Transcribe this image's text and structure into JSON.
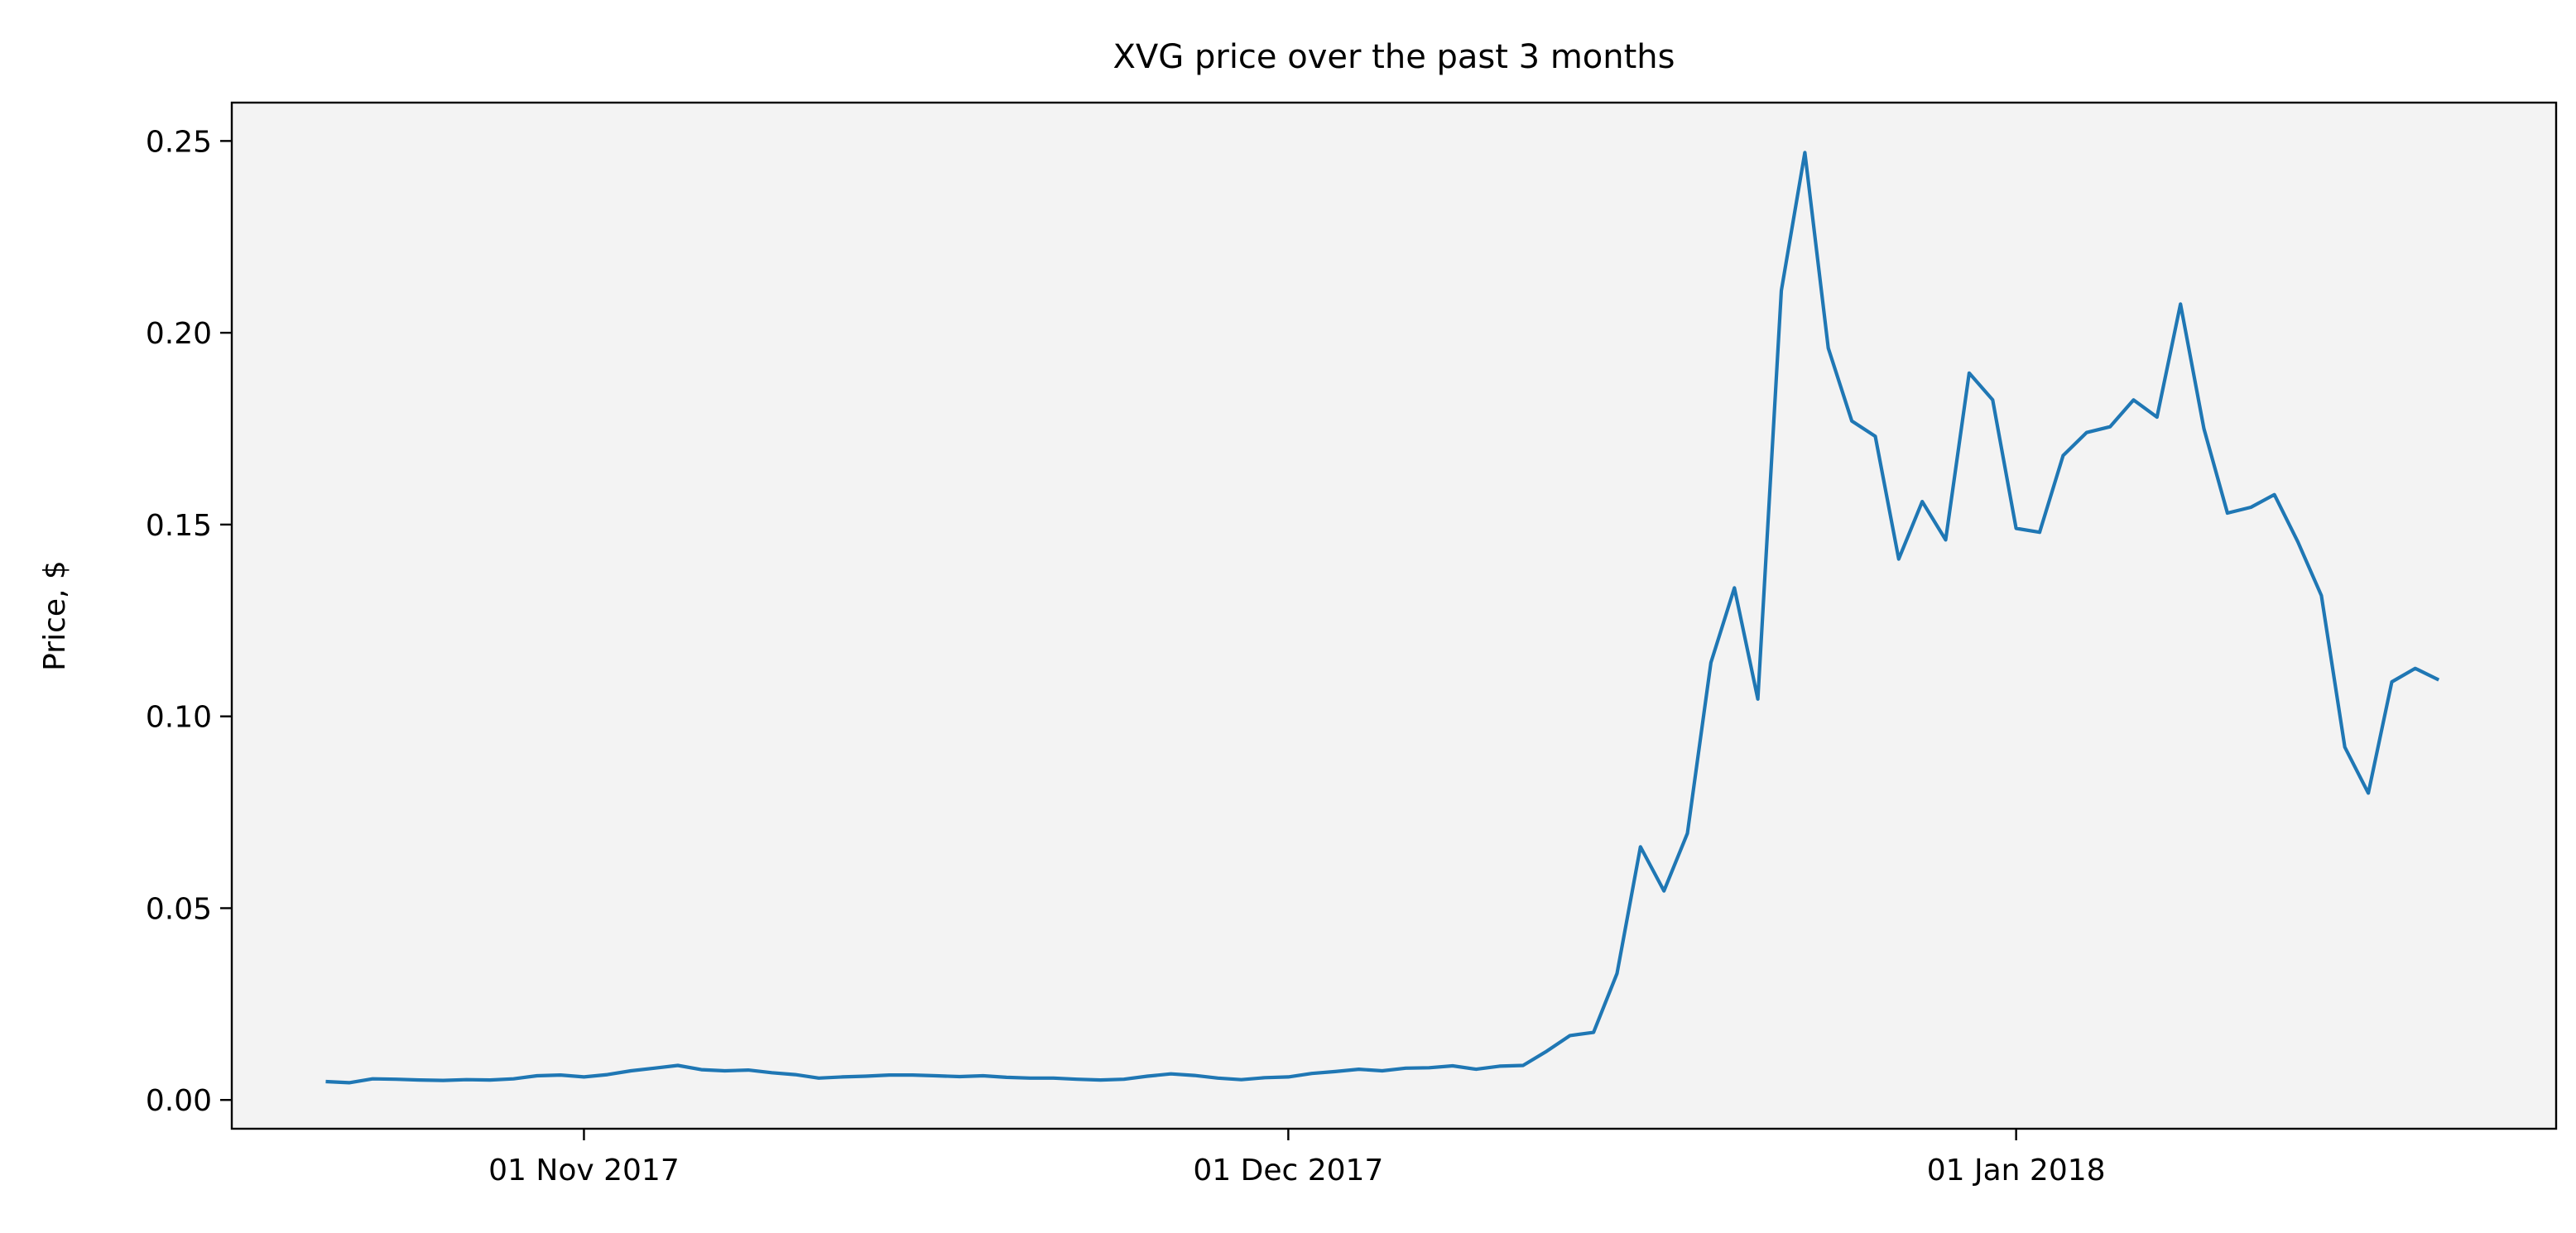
{
  "chart_data": {
    "type": "line",
    "title": "XVG price over the past 3 months",
    "xlabel": "",
    "ylabel": "Price, $",
    "x_tick_labels": [
      {
        "date": "2017-11-01",
        "label": "01 Nov 2017"
      },
      {
        "date": "2017-12-01",
        "label": "01 Dec 2017"
      },
      {
        "date": "2018-01-01",
        "label": "01 Jan 2018"
      }
    ],
    "y_ticks": [
      0.0,
      0.05,
      0.1,
      0.15,
      0.2,
      0.25
    ],
    "y_tick_labels": [
      "0.00",
      "0.05",
      "0.10",
      "0.15",
      "0.20",
      "0.25"
    ],
    "xlim": [
      "2017-10-17",
      "2018-01-24"
    ],
    "ylim": [
      -0.0075,
      0.26
    ],
    "grid": false,
    "plot_background": "#f3f3f3",
    "series": [
      {
        "color": "#1f77b4",
        "points": [
          [
            "2017-10-21",
            0.0048
          ],
          [
            "2017-10-22",
            0.0045
          ],
          [
            "2017-10-23",
            0.0055
          ],
          [
            "2017-10-24",
            0.0054
          ],
          [
            "2017-10-25",
            0.0052
          ],
          [
            "2017-10-26",
            0.0051
          ],
          [
            "2017-10-27",
            0.0053
          ],
          [
            "2017-10-28",
            0.0052
          ],
          [
            "2017-10-29",
            0.0055
          ],
          [
            "2017-10-30",
            0.0063
          ],
          [
            "2017-10-31",
            0.0065
          ],
          [
            "2017-11-01",
            0.006
          ],
          [
            "2017-11-02",
            0.0066
          ],
          [
            "2017-11-03",
            0.0076
          ],
          [
            "2017-11-04",
            0.0083
          ],
          [
            "2017-11-05",
            0.009
          ],
          [
            "2017-11-06",
            0.0079
          ],
          [
            "2017-11-07",
            0.0076
          ],
          [
            "2017-11-08",
            0.0078
          ],
          [
            "2017-11-09",
            0.0071
          ],
          [
            "2017-11-10",
            0.0066
          ],
          [
            "2017-11-11",
            0.0057
          ],
          [
            "2017-11-12",
            0.006
          ],
          [
            "2017-11-13",
            0.0062
          ],
          [
            "2017-11-14",
            0.0065
          ],
          [
            "2017-11-15",
            0.0065
          ],
          [
            "2017-11-16",
            0.0063
          ],
          [
            "2017-11-17",
            0.0061
          ],
          [
            "2017-11-18",
            0.0063
          ],
          [
            "2017-11-19",
            0.0059
          ],
          [
            "2017-11-20",
            0.0057
          ],
          [
            "2017-11-21",
            0.0057
          ],
          [
            "2017-11-22",
            0.0054
          ],
          [
            "2017-11-23",
            0.0052
          ],
          [
            "2017-11-24",
            0.0054
          ],
          [
            "2017-11-25",
            0.0062
          ],
          [
            "2017-11-26",
            0.0068
          ],
          [
            "2017-11-27",
            0.0064
          ],
          [
            "2017-11-28",
            0.0057
          ],
          [
            "2017-11-29",
            0.0053
          ],
          [
            "2017-11-30",
            0.0058
          ],
          [
            "2017-12-01",
            0.006
          ],
          [
            "2017-12-02",
            0.0069
          ],
          [
            "2017-12-03",
            0.0074
          ],
          [
            "2017-12-04",
            0.008
          ],
          [
            "2017-12-05",
            0.0076
          ],
          [
            "2017-12-06",
            0.0083
          ],
          [
            "2017-12-07",
            0.0084
          ],
          [
            "2017-12-08",
            0.0089
          ],
          [
            "2017-12-09",
            0.008
          ],
          [
            "2017-12-10",
            0.0088
          ],
          [
            "2017-12-11",
            0.009
          ],
          [
            "2017-12-12",
            0.0127
          ],
          [
            "2017-12-13",
            0.0168
          ],
          [
            "2017-12-14",
            0.0176
          ],
          [
            "2017-12-15",
            0.033
          ],
          [
            "2017-12-16",
            0.066
          ],
          [
            "2017-12-17",
            0.0545
          ],
          [
            "2017-12-18",
            0.0695
          ],
          [
            "2017-12-19",
            0.114
          ],
          [
            "2017-12-20",
            0.1335
          ],
          [
            "2017-12-21",
            0.1045
          ],
          [
            "2017-12-22",
            0.211
          ],
          [
            "2017-12-23",
            0.247
          ],
          [
            "2017-12-24",
            0.196
          ],
          [
            "2017-12-25",
            0.177
          ],
          [
            "2017-12-26",
            0.173
          ],
          [
            "2017-12-27",
            0.141
          ],
          [
            "2017-12-28",
            0.156
          ],
          [
            "2017-12-29",
            0.146
          ],
          [
            "2017-12-30",
            0.1895
          ],
          [
            "2017-12-31",
            0.1825
          ],
          [
            "2018-01-01",
            0.149
          ],
          [
            "2018-01-02",
            0.148
          ],
          [
            "2018-01-03",
            0.168
          ],
          [
            "2018-01-04",
            0.174
          ],
          [
            "2018-01-05",
            0.1755
          ],
          [
            "2018-01-06",
            0.1825
          ],
          [
            "2018-01-07",
            0.178
          ],
          [
            "2018-01-08",
            0.2075
          ],
          [
            "2018-01-09",
            0.175
          ],
          [
            "2018-01-10",
            0.153
          ],
          [
            "2018-01-11",
            0.1545
          ],
          [
            "2018-01-12",
            0.1578
          ],
          [
            "2018-01-13",
            0.1455
          ],
          [
            "2018-01-14",
            0.1315
          ],
          [
            "2018-01-15",
            0.092
          ],
          [
            "2018-01-16",
            0.08
          ],
          [
            "2018-01-17",
            0.109
          ],
          [
            "2018-01-18",
            0.1125
          ],
          [
            "2018-01-19",
            0.1095
          ]
        ]
      }
    ]
  }
}
